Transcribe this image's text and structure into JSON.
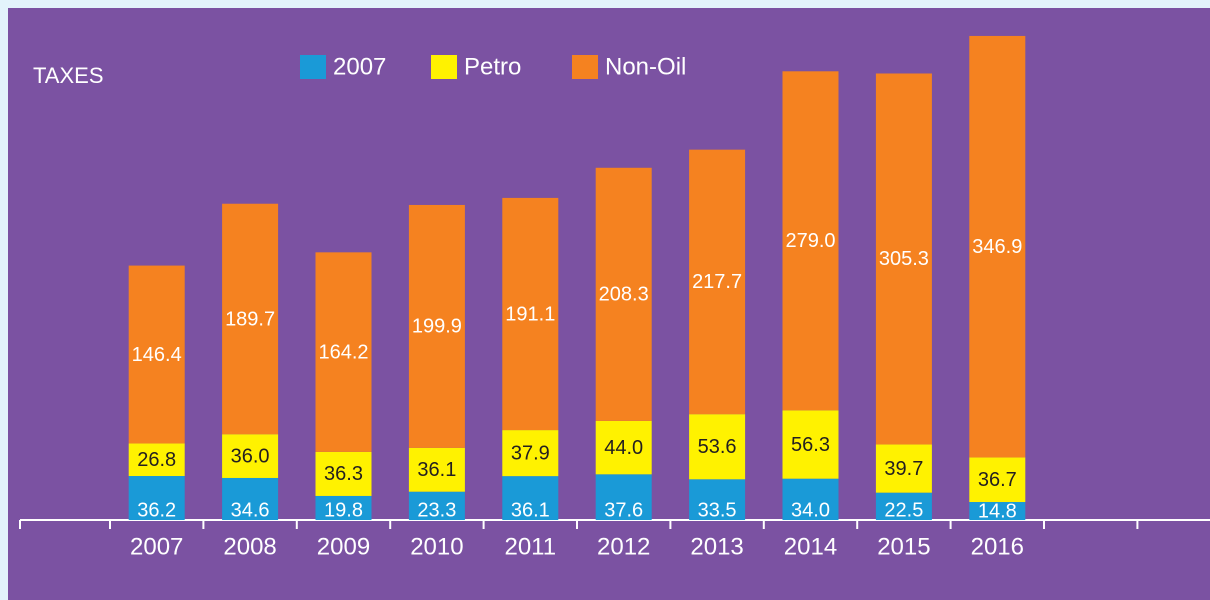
{
  "chart_data": {
    "type": "stacked-bar",
    "title": "TAXES",
    "categories": [
      "2007",
      "2008",
      "2009",
      "2010",
      "2011",
      "2012",
      "2013",
      "2014",
      "2015",
      "2016"
    ],
    "series": [
      {
        "name": "2007",
        "color": "#1a9ad7",
        "values": [
          36.2,
          34.6,
          19.8,
          23.3,
          36.1,
          37.6,
          33.5,
          34.0,
          22.5,
          14.8
        ],
        "value_labels": [
          "36.2",
          "34.6",
          "19.8",
          "23.3",
          "36.1",
          "37.6",
          "33.5",
          "34.0",
          "22.5",
          "14.8"
        ]
      },
      {
        "name": "Petro",
        "color": "#fff200",
        "values": [
          26.8,
          36.0,
          36.3,
          36.1,
          37.9,
          44.0,
          53.6,
          56.3,
          39.7,
          36.7
        ],
        "value_labels": [
          "26.8",
          "36.0",
          "36.3",
          "36.1",
          "37.9",
          "44.0",
          "53.6",
          "56.3",
          "39.7",
          "36.7"
        ]
      },
      {
        "name": "Non-Oil",
        "color": "#f58220",
        "values": [
          146.4,
          189.7,
          164.2,
          199.9,
          191.1,
          208.3,
          217.7,
          279.0,
          305.3,
          346.9
        ],
        "value_labels": [
          "146.4",
          "189.7",
          "164.2",
          "199.9",
          "191.1",
          "208.3",
          "217.7",
          "279.0",
          "305.3",
          "346.9"
        ]
      }
    ],
    "ylim": [
      0,
      400
    ],
    "legend": "top"
  }
}
